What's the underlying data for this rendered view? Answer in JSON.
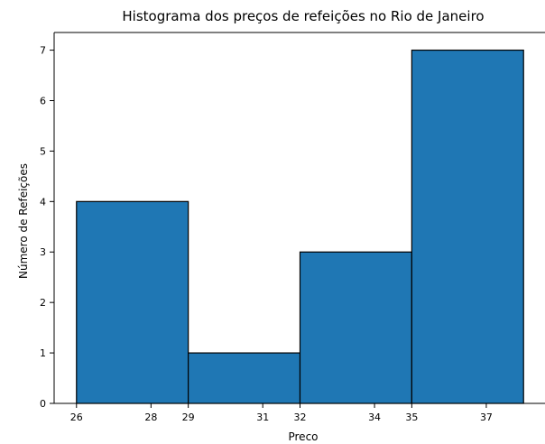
{
  "chart_data": {
    "type": "bar",
    "title": "Histograma dos preços de refeições no Rio de Janeiro",
    "xlabel": "Preco",
    "ylabel": "Número de Refeições",
    "bins": [
      {
        "start": 26,
        "end": 29,
        "count": 4
      },
      {
        "start": 29,
        "end": 32,
        "count": 1
      },
      {
        "start": 32,
        "end": 35,
        "count": 3
      },
      {
        "start": 35,
        "end": 38,
        "count": 7
      }
    ],
    "xlim": [
      25.4,
      38.6
    ],
    "ylim": [
      0,
      7.35
    ],
    "xticks": [
      26,
      28,
      29,
      31,
      32,
      34,
      35,
      37
    ],
    "yticks": [
      0,
      1,
      2,
      3,
      4,
      5,
      6,
      7
    ],
    "grid": false,
    "bar_color": "#1f77b4",
    "edge_color": "#000000"
  }
}
